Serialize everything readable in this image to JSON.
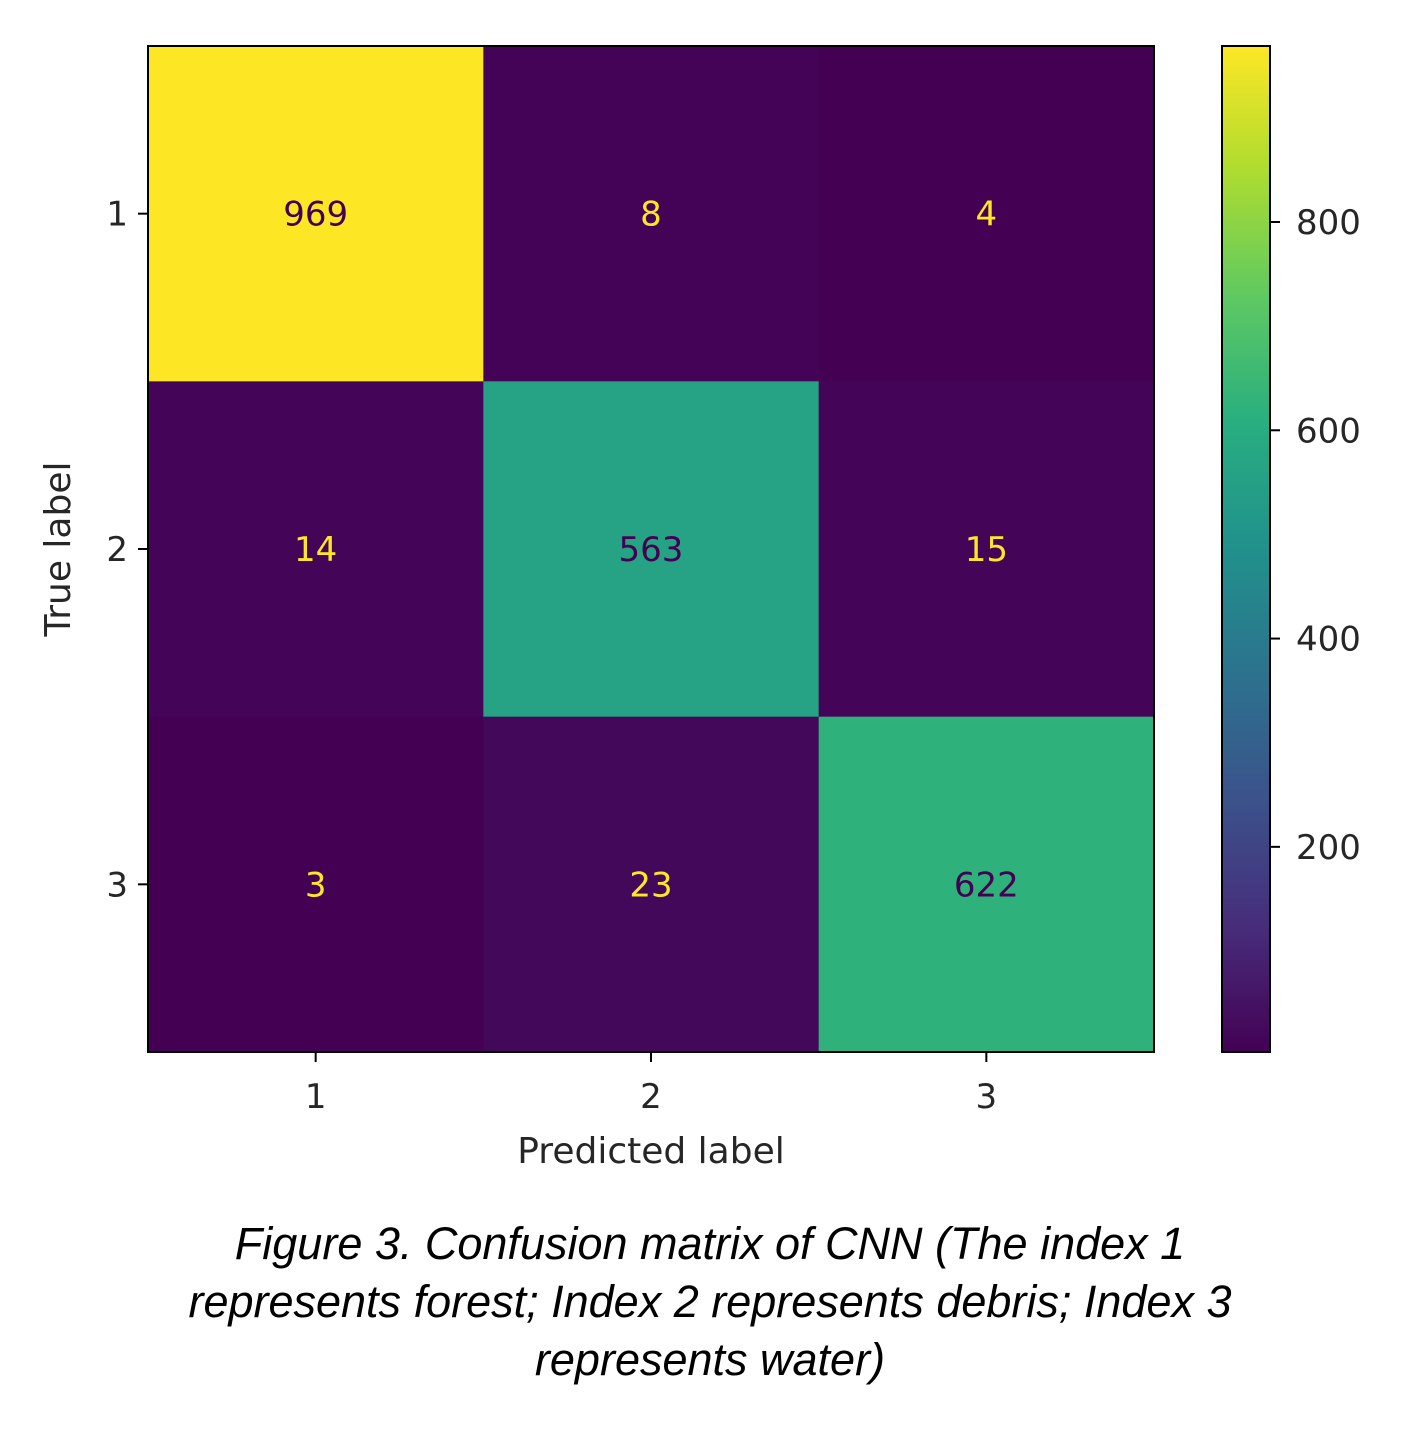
{
  "chart_data": {
    "type": "heatmap",
    "row_labels": [
      "1",
      "2",
      "3"
    ],
    "col_labels": [
      "1",
      "2",
      "3"
    ],
    "values": [
      [
        969,
        8,
        4
      ],
      [
        14,
        563,
        15
      ],
      [
        3,
        23,
        622
      ]
    ],
    "xlabel": "Predicted label",
    "ylabel": "True label",
    "colorbar": {
      "ticks": [
        200,
        400,
        600,
        800
      ],
      "range": [
        3,
        969
      ],
      "colormap": "viridis"
    }
  },
  "caption": {
    "lines": [
      "Figure 3. Confusion matrix of CNN (The index 1",
      "represents forest; Index 2 represents debris; Index 3",
      "represents water)"
    ]
  }
}
